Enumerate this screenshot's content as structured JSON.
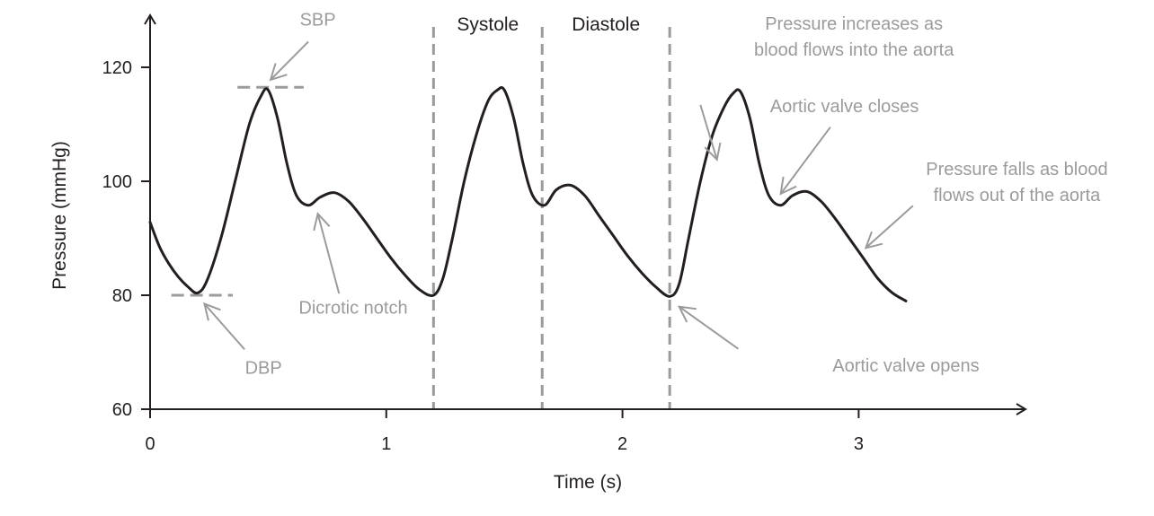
{
  "chart_data": {
    "type": "line",
    "xlabel": "Time (s)",
    "ylabel": "Pressure (mmHg)",
    "xlim": [
      0,
      3.7
    ],
    "ylim": [
      60,
      127
    ],
    "xticks": [
      0,
      1,
      2,
      3
    ],
    "yticks": [
      60,
      80,
      100,
      120
    ],
    "colors": {
      "curve": "#231f20",
      "annotation": "#9b9b9b",
      "phase_line": "#9b9b9b"
    },
    "series": [
      {
        "x": [
          0,
          0.04,
          0.08,
          0.12,
          0.16,
          0.2,
          0.24,
          0.3,
          0.36,
          0.42,
          0.47,
          0.5,
          0.54,
          0.58,
          0.62,
          0.67,
          0.72,
          0.78,
          0.84,
          0.9,
          0.96,
          1.02,
          1.08,
          1.14,
          1.2,
          1.24,
          1.28,
          1.33,
          1.38,
          1.43,
          1.47,
          1.5,
          1.54,
          1.58,
          1.62,
          1.67,
          1.72,
          1.78,
          1.84,
          1.9,
          1.96,
          2.02,
          2.08,
          2.14,
          2.2,
          2.24,
          2.28,
          2.33,
          2.38,
          2.43,
          2.47,
          2.5,
          2.54,
          2.58,
          2.62,
          2.67,
          2.72,
          2.78,
          2.84,
          2.9,
          2.96,
          3.02,
          3.08,
          3.14,
          3.2
        ],
        "y": [
          92.8,
          88.5,
          85.5,
          83.2,
          81.5,
          80.4,
          82.5,
          90,
          100,
          110,
          115,
          116,
          111,
          103,
          97.5,
          95.8,
          97.2,
          98,
          96.5,
          93.5,
          90,
          86.5,
          83.5,
          81,
          80,
          83,
          90,
          100,
          108,
          114,
          116,
          116,
          111,
          103,
          97.5,
          95.8,
          98.5,
          99.3,
          97.5,
          94,
          90.5,
          87,
          84,
          81.5,
          79.8,
          82,
          90,
          100,
          108,
          113,
          115.5,
          115.7,
          111,
          103,
          97.5,
          95.8,
          97.5,
          98.2,
          96.5,
          93.5,
          90,
          86.5,
          83,
          80.5,
          79
        ]
      }
    ],
    "phase_lines": [
      1.2,
      1.66,
      2.2
    ],
    "phase_labels": [
      {
        "text": "Systole",
        "x": 1.43
      },
      {
        "text": "Diastole",
        "x": 1.93
      }
    ],
    "reference_lines": [
      {
        "label": "SBP",
        "y": 116.5,
        "x_from": 0.37,
        "x_to": 0.65
      },
      {
        "label": "DBP",
        "y": 80,
        "x_from": 0.09,
        "x_to": 0.35
      }
    ],
    "annotations": [
      {
        "lines": [
          "SBP"
        ],
        "x": 0.71,
        "y": 127.3,
        "anchor": "middle",
        "arrow_from": [
          0.67,
          124.5
        ],
        "arrow_to": [
          0.51,
          117.8
        ]
      },
      {
        "lines": [
          "DBP"
        ],
        "x": 0.48,
        "y": 66.2,
        "anchor": "middle",
        "arrow_from": [
          0.4,
          70.5
        ],
        "arrow_to": [
          0.23,
          78.5
        ]
      },
      {
        "lines": [
          "Dicrotic notch"
        ],
        "x": 0.86,
        "y": 76.8,
        "anchor": "middle",
        "arrow_from": [
          0.8,
          80.3
        ],
        "arrow_to": [
          0.71,
          94.3
        ]
      },
      {
        "lines": [
          "Pressure increases as",
          "blood flows into the aorta"
        ],
        "x": 2.98,
        "y": 126.6,
        "anchor": "middle",
        "arrow_from": [
          2.33,
          113.4
        ],
        "arrow_to": [
          2.4,
          103.8
        ]
      },
      {
        "lines": [
          "Aortic valve closes"
        ],
        "x": 2.94,
        "y": 112.1,
        "anchor": "middle",
        "arrow_from": [
          2.88,
          109.5
        ],
        "arrow_to": [
          2.67,
          97.8
        ]
      },
      {
        "lines": [
          "Pressure falls as blood",
          "flows out of the aorta"
        ],
        "x": 3.67,
        "y": 101.1,
        "anchor": "middle",
        "arrow_from": [
          3.23,
          95.7
        ],
        "arrow_to": [
          3.03,
          88.3
        ]
      },
      {
        "lines": [
          "Aortic valve opens"
        ],
        "x": 3.2,
        "y": 66.6,
        "anchor": "middle",
        "arrow_from": [
          2.49,
          70.6
        ],
        "arrow_to": [
          2.24,
          78.0
        ]
      }
    ]
  }
}
